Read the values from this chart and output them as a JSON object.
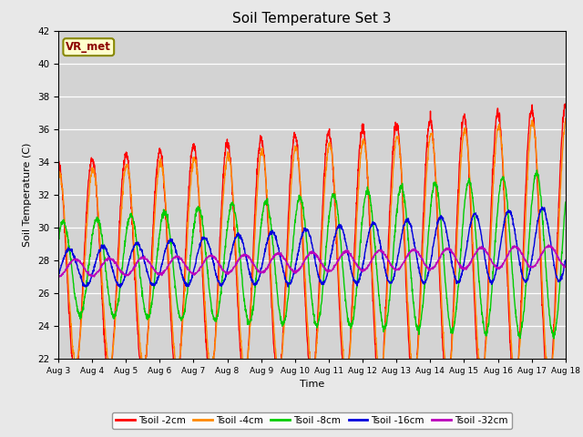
{
  "title": "Soil Temperature Set 3",
  "xlabel": "Time",
  "ylabel": "Soil Temperature (C)",
  "ylim": [
    22,
    42
  ],
  "yticks": [
    22,
    24,
    26,
    28,
    30,
    32,
    34,
    36,
    38,
    40,
    42
  ],
  "xtick_labels": [
    "Aug 3",
    "Aug 4",
    "Aug 5",
    "Aug 6",
    "Aug 7",
    "Aug 8",
    "Aug 9",
    "Aug 10",
    "Aug 11",
    "Aug 12",
    "Aug 13",
    "Aug 14",
    "Aug 15",
    "Aug 16",
    "Aug 17",
    "Aug 18"
  ],
  "annotation_text": "VR_met",
  "colors": {
    "Tsoil_2cm": "#ff0000",
    "Tsoil_4cm": "#ff8800",
    "Tsoil_8cm": "#00cc00",
    "Tsoil_16cm": "#0000dd",
    "Tsoil_32cm": "#bb00bb"
  },
  "legend_labels": [
    "Tsoil -2cm",
    "Tsoil -4cm",
    "Tsoil -8cm",
    "Tsoil -16cm",
    "Tsoil -32cm"
  ],
  "background_color": "#e8e8e8",
  "plot_bg_color": "#d3d3d3",
  "n_days": 15,
  "points_per_day": 144
}
